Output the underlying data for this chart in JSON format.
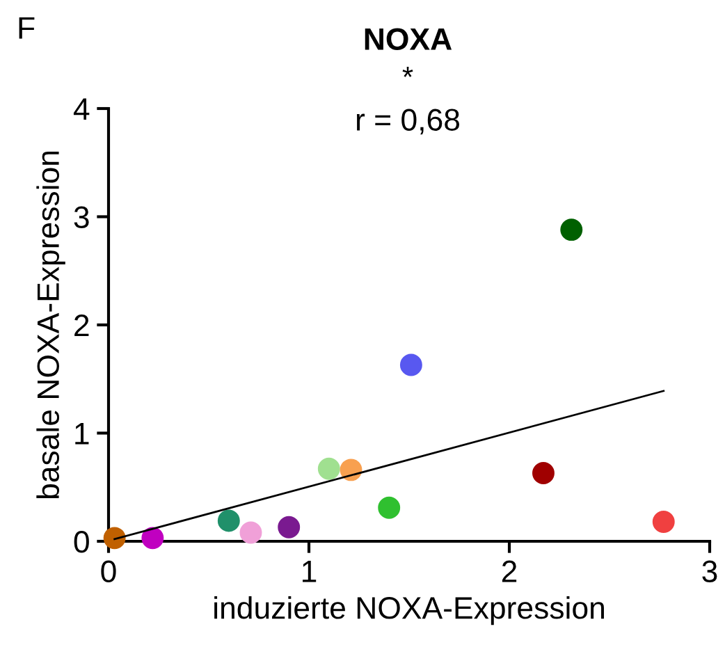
{
  "chart_data": {
    "type": "scatter",
    "title": "NOXA",
    "xlabel": "induzierte NOXA-Expression",
    "ylabel": "basale NOXA-Expression",
    "annotations": [
      "F",
      "*",
      "r = 0,68"
    ],
    "xlim": [
      0,
      3
    ],
    "ylim": [
      0,
      4
    ],
    "xticks": [
      0,
      1,
      2,
      3
    ],
    "yticks": [
      0,
      1,
      2,
      3,
      4
    ],
    "grid": false,
    "legend": false,
    "series": [
      {
        "marker": "circle",
        "x": [
          0.03,
          0.22,
          0.6,
          0.71,
          0.9,
          1.1,
          1.21,
          1.4,
          1.51,
          2.17,
          2.31,
          2.77
        ],
        "values": [
          0.03,
          0.03,
          0.19,
          0.08,
          0.13,
          0.67,
          0.66,
          0.31,
          1.63,
          0.63,
          2.88,
          0.18
        ],
        "colors": [
          "#c06000",
          "#c000c0",
          "#20906a",
          "#f0a0d8",
          "#7a1a90",
          "#a0e090",
          "#f8a050",
          "#30c030",
          "#5858f0",
          "#a00000",
          "#006000",
          "#f04040"
        ]
      },
      {
        "type": "line",
        "x": [
          0.03,
          2.77
        ],
        "values": [
          0.02,
          1.39
        ],
        "color": "#000000",
        "line_style": "solid"
      }
    ]
  }
}
